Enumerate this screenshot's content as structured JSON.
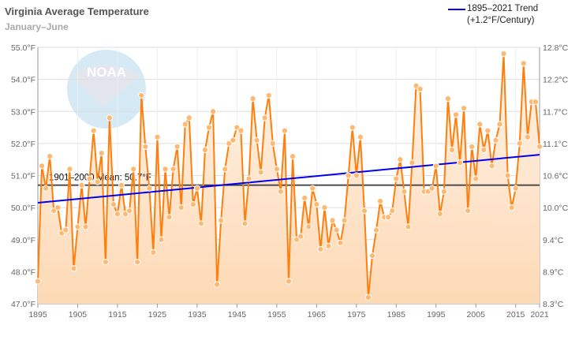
{
  "chart_data": {
    "type": "line",
    "title": "Virginia Average Temperature",
    "subtitle": "January–June",
    "x_start": 1895,
    "x_end": 2021,
    "values": [
      47.7,
      51.3,
      50.6,
      51.6,
      49.9,
      50.0,
      49.2,
      49.3,
      51.2,
      48.1,
      49.4,
      50.7,
      49.4,
      50.9,
      52.4,
      50.8,
      51.7,
      48.3,
      52.8,
      50.1,
      49.8,
      50.7,
      49.8,
      49.9,
      51.2,
      48.3,
      53.5,
      51.9,
      50.6,
      48.6,
      52.2,
      49.0,
      51.2,
      49.7,
      51.2,
      51.9,
      50.0,
      52.6,
      52.8,
      50.1,
      50.6,
      49.5,
      51.8,
      52.5,
      53.0,
      47.6,
      49.6,
      51.2,
      52.0,
      52.1,
      52.5,
      52.4,
      49.5,
      50.9,
      53.4,
      52.1,
      51.1,
      52.8,
      53.5,
      52.0,
      51.2,
      50.5,
      52.4,
      47.7,
      51.6,
      49.0,
      49.1,
      50.3,
      49.4,
      50.6,
      50.1,
      48.7,
      50.0,
      48.8,
      49.6,
      49.3,
      48.9,
      49.6,
      51.0,
      52.5,
      51.0,
      52.2,
      49.9,
      47.2,
      48.5,
      49.3,
      50.2,
      49.7,
      49.7,
      49.9,
      50.9,
      51.5,
      50.5,
      49.4,
      51.4,
      53.8,
      53.7,
      50.5,
      50.5,
      50.6,
      51.3,
      49.8,
      50.5,
      53.4,
      51.8,
      52.9,
      51.4,
      53.1,
      49.9,
      51.9,
      50.9,
      52.6,
      51.8,
      52.4,
      51.3,
      52.1,
      52.6,
      54.8,
      51.0,
      50.0,
      50.6,
      52.0,
      54.5,
      52.2,
      53.3,
      53.3,
      51.9
    ],
    "mean": {
      "value": 50.7,
      "label": "1901–2000 Mean: 50.7°F"
    },
    "trend": {
      "start": 50.15,
      "end": 51.65,
      "label_line1": "1895–2021 Trend",
      "label_line2": "(+1.2°F/Century)"
    },
    "ylim": [
      47,
      55
    ],
    "y_ticks_left": [
      "47.0°F",
      "48.0°F",
      "49.0°F",
      "50.0°F",
      "51.0°F",
      "52.0°F",
      "53.0°F",
      "54.0°F",
      "55.0°F"
    ],
    "y_ticks_right": [
      "8.3°C",
      "8.9°C",
      "9.4°C",
      "10.0°C",
      "10.6°C",
      "11.1°C",
      "11.7°C",
      "12.2°C",
      "12.8°C"
    ],
    "x_ticks": [
      1895,
      1905,
      1915,
      1925,
      1935,
      1945,
      1955,
      1965,
      1975,
      1985,
      1995,
      2005,
      2015,
      2021
    ],
    "grid": true,
    "legend_position": "top-right",
    "colors": {
      "series": "#ff7f0e",
      "trend": "#0000ee",
      "mean": "#444444",
      "fill": "#fdd9b5"
    },
    "watermark": "NOAA"
  }
}
